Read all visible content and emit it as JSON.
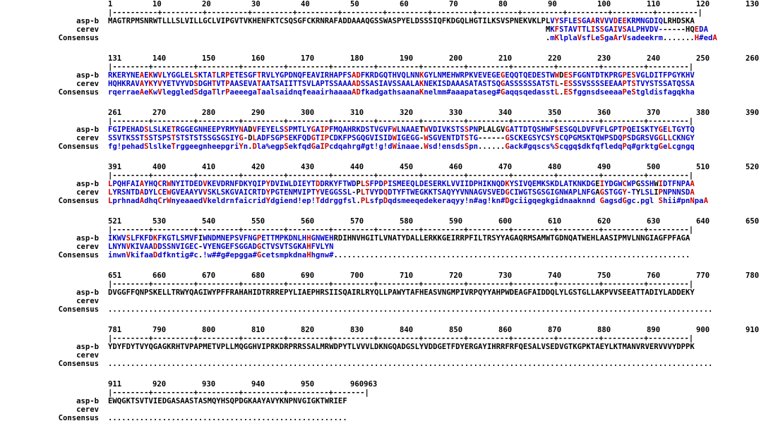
{
  "labels": [
    "asp-b",
    "cerev",
    "Consensus"
  ],
  "blocks": [
    {
      "ticks": [
        "1",
        "10",
        "20",
        "30",
        "40",
        "50",
        "60",
        "70",
        "80",
        "90",
        "100",
        "110",
        "120",
        "130"
      ],
      "ruler": "|----------+---------+---------+---------+---------+---------+---------+---------+---------+---------+---------+---------+---------|",
      "seq1": "MAGTRPMSNRWTLLLSLVILLGCLVIPGVTVKHENFKTCSQSGFCKRNRAFADDAAAQGSSWASPYELDSSSIQFKDGQLHGTILKSVSPNEKVKLPLVYSFLESGAARVVVDEEKRMNGDIQLRHDSKA",
      "seq2": "                                                                                                 MKFSTAVTTLISSGAIVSALPHVDV------HQEDA",
      "cons": "                                                                                                 .mKlplaVsfLeSgaArVsadeekrm.......H#edA"
    },
    {
      "ticks": [
        "131",
        "140",
        "150",
        "160",
        "170",
        "180",
        "190",
        "200",
        "210",
        "220",
        "230",
        "240",
        "250",
        "260"
      ],
      "ruler": "|--------+---------+---------+---------+---------+---------+---------+---------+---------+---------+---------+---------+---------|",
      "seq1": "RKERYNEAEKWVLYGGLELSKTATLRPETESGFTRVLYGPDNQFEAVIRHAPFSADFKRDGQTHVQLNNKGYLNMEHWRPKVEVEGEGEQQTQEDESTWWDESFGGNTDTKPRGPESVGLDITFPGYKHV",
      "seq2": "HQHKRAVAYKYVYETVYVDSDGHTVTPAASEVATAATSAIITTSVLAPTSSAAAADSSASIAVSSAALAKNEKISDAAASATASTSQGASSSSSSATSTL-ESSSVSSSSEEAAPTSTVYSTSSATQSSA",
      "cons": "rqerraeAeKwVleggledSdgaTlrPaeeegaTaalsaidnqfeaairhaaaaADfkadgathsaanaKnelmm#aaapataseg#GaqqsqedasstL.ESfggnsdseeaaPeStgldisfagqkha"
    },
    {
      "ticks": [
        "261",
        "270",
        "280",
        "290",
        "300",
        "310",
        "320",
        "330",
        "340",
        "350",
        "360",
        "370",
        "380",
        "390"
      ],
      "ruler": "|--------+---------+---------+---------+---------+---------+---------+---------+---------+---------+---------+---------+---------|",
      "seq1": "FGIPEHADSLSLKETRGGEGNHEEPYRMYNADVFEYELSSPMTLYGAIPFMQAHRKDSTVGVFWLNAAETWVDIVKSTSSPNPLALGVGATTDTQSHWFSESGQLDVFVFLGPTPQEISKTYGELTGYTQ",
      "seq2": "SSVTKSSTSSTSPSTSTSTSTSSGSGSIYG-DLADFSGPSEKFQDGTIPCDKFPSGQGVISIDWIGEGG-WSGVENTDTSTG------GSCKEGSYCSYSCQPGMSKTQWPSDQPSDGRSVGGLLCKNGY",
      "cons": "fg!pehadSlslkeTrggeegnheepgriYn.Dla%egpSekfqdGaIPcdqahrg#gt!g!dWinaae.Wsd!ensdsSpn......Gack#gqscs%Scqgq$dkfqfledqPq#grktgGeLcgngq"
    },
    {
      "ticks": [
        "391",
        "400",
        "410",
        "420",
        "430",
        "440",
        "450",
        "460",
        "470",
        "480",
        "490",
        "500",
        "510",
        "520"
      ],
      "ruler": "|--------+---------+---------+---------+---------+---------+---------+---------+---------+---------+---------+---------+---------|",
      "seq1": "LPQHFAIAYHQCRWNYITDEDVKEVDRNFDKYQIPYDVIWLDIEYTDDRKYFTWDPLSFPDPISMEEQLDESERKLVVIIDPHIKNQDKYSIVQEMKSKDLATKNKDGEIYDGWCWPGSSHWIDTFNPAA",
      "seq2": "LYRSNTDADYLCEWGVEAAYVVSKLSKGVAICRTDYPGTENMVIPTYVEGGSSL-PLTVYDQDTYFTWEGKKTSAQYYVNNAGVSVEDGCIWGTSGSGIGNWAPLNFGAGSTGGY-TYLSLIPNPNNSDA",
      "cons": "LprhnadAdhqCrWnyeaaedVkeldrnfaicridYdgiend!ep!Tddrggfsl.PLsfpDqdsmeeqedekeraqyy!n#ag!kn#Dgciigqegkgidnaaknnd GagsdGgc.pgl Shii#pnNpaA"
    },
    {
      "ticks": [
        "521",
        "530",
        "540",
        "550",
        "560",
        "570",
        "580",
        "590",
        "600",
        "610",
        "620",
        "630",
        "640",
        "650"
      ],
      "ruler": "|--------+---------+---------+---------+---------+---------+---------+---------+---------+---------+---------+---------+---------|",
      "seq1": "IKWVSLFKFDKFKGTLSMVFIWNDMNEPSVFNGPETTMPKDNLHHGNWEHRDIHNVHGITLVNATYDALLERKKGEIRRPFILTRSYYAGAQRMSAMWTGDNQATWEHLAASIPMVLNNGIAGFPFAGA",
      "seq2": "LNYNVKIVAADDSSNVIGEC-VYENGEFSGGADGCTVSVTSGKAHFVLYN",
      "cons": "inwnVkifaaDdfkntig#c.!w##g#epgga#GcetsmpkdnaHhgnw#..............................................................................."
    },
    {
      "ticks": [
        "651",
        "660",
        "670",
        "680",
        "690",
        "700",
        "710",
        "720",
        "730",
        "740",
        "750",
        "760",
        "770",
        "780"
      ],
      "ruler": "|--------+---------+---------+---------+---------+---------+---------+---------+---------+---------+---------+---------+---------|",
      "seq1": "DVGGFFQNPSKELLTRWYQAGIWYPFFRAHAHIDTRRREPYLIAEPHRSIISQAIRLRYQLLPAWYTAFHEASVNGMPIVRPQYYAHPWDEAGFAIDDQLYLGSTGLLAKPVVSEEATTADIYLADDEKY",
      "seq2": "",
      "cons": "......................................................................................................................................"
    },
    {
      "ticks": [
        "781",
        "790",
        "800",
        "810",
        "820",
        "830",
        "840",
        "850",
        "860",
        "870",
        "880",
        "890",
        "900",
        "910"
      ],
      "ruler": "|--------+---------+---------+---------+---------+---------+---------+---------+---------+---------+---------+---------+---------|",
      "seq1": "YDYFDYTVYQGAGKRHTVPAPMETVPLLMQGGHVIPRKDRPRRSSALMRWDPYTLVVVLDKNGQADGSLYVDDGETFDYERGAYIHRRFRFQESALVSEDVGTKGPKTAEYLKTMANVRVERVVVYDPPK",
      "seq2": "",
      "cons": "......................................................................................................................................"
    },
    {
      "ticks": [
        "911",
        "920",
        "930",
        "940",
        "950",
        "960963"
      ],
      "ruler": "|--------+---------+---------+---------+---------+-------|",
      "seq1": "EWQGKTSVTVIEDGASAASTASMQYHSQPDGKAAYAVYKNPNVGIGKTWRIEF",
      "seq2": "",
      "cons": "....................................................."
    }
  ]
}
